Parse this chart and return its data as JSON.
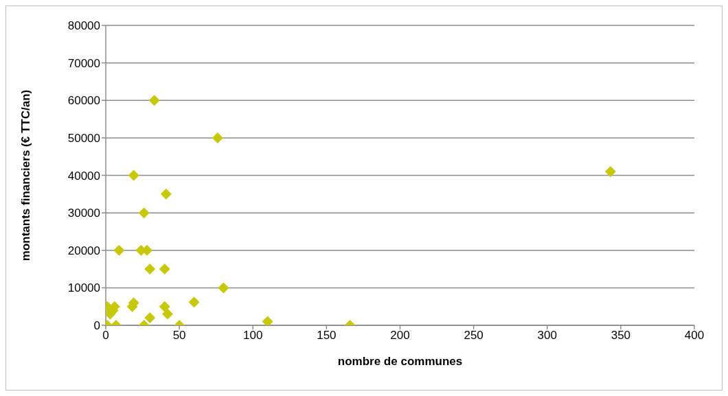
{
  "chart_data": {
    "type": "scatter",
    "xlabel": "nombre de communes",
    "ylabel": "montants financiers (€ TTC/an)",
    "x": [
      9,
      24,
      28,
      30,
      40,
      80,
      1,
      6,
      19,
      18,
      40,
      60,
      3,
      5,
      30,
      42,
      1,
      7,
      26,
      50,
      33,
      76,
      19,
      41,
      26,
      110,
      166,
      343
    ],
    "values": [
      20000,
      20000,
      20000,
      15000,
      15000,
      10000,
      5000,
      5000,
      6000,
      5000,
      5000,
      6200,
      3000,
      4000,
      2000,
      3000,
      0,
      0,
      0,
      0,
      60000,
      50000,
      40000,
      35000,
      30000,
      1000,
      0,
      41000
    ],
    "color": "#c8c80a",
    "marker": "diamond",
    "xlim": [
      0,
      400
    ],
    "xticks": [
      0,
      50,
      100,
      150,
      200,
      250,
      300,
      350,
      400
    ],
    "ylim": [
      0,
      80000
    ],
    "yticks": [
      0,
      10000,
      20000,
      30000,
      40000,
      50000,
      60000,
      70000,
      80000
    ],
    "grid": "y"
  }
}
